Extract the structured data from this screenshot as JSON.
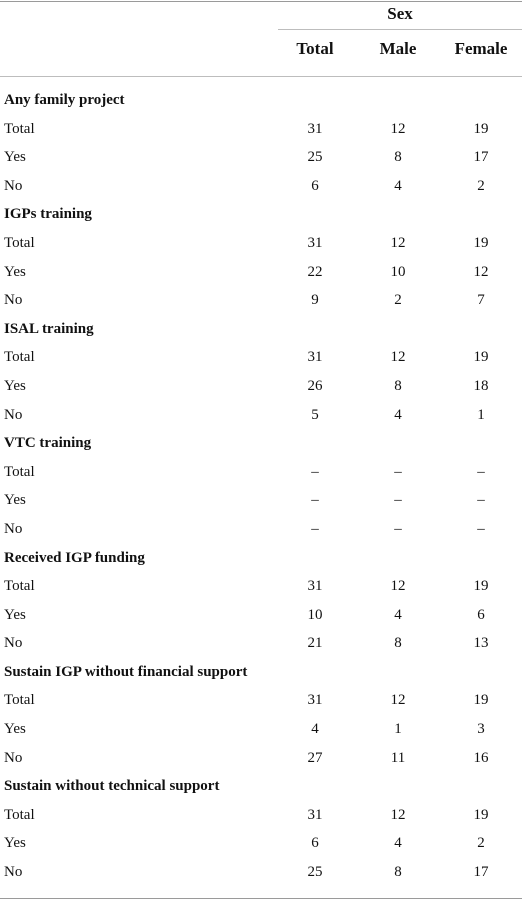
{
  "header": {
    "group_label": "Sex",
    "columns": [
      "Total",
      "Male",
      "Female"
    ]
  },
  "sections": [
    {
      "title": "Any family project",
      "rows": [
        {
          "label": "Total",
          "values": [
            "31",
            "12",
            "19"
          ]
        },
        {
          "label": "Yes",
          "values": [
            "25",
            "8",
            "17"
          ]
        },
        {
          "label": "No",
          "values": [
            "6",
            "4",
            "2"
          ]
        }
      ]
    },
    {
      "title": "IGPs training",
      "rows": [
        {
          "label": "Total",
          "values": [
            "31",
            "12",
            "19"
          ]
        },
        {
          "label": "Yes",
          "values": [
            "22",
            "10",
            "12"
          ]
        },
        {
          "label": "No",
          "values": [
            "9",
            "2",
            "7"
          ]
        }
      ]
    },
    {
      "title": "ISAL training",
      "rows": [
        {
          "label": "Total",
          "values": [
            "31",
            "12",
            "19"
          ]
        },
        {
          "label": "Yes",
          "values": [
            "26",
            "8",
            "18"
          ]
        },
        {
          "label": "No",
          "values": [
            "5",
            "4",
            "1"
          ]
        }
      ]
    },
    {
      "title": "VTC training",
      "rows": [
        {
          "label": "Total",
          "values": [
            "–",
            "–",
            "–"
          ]
        },
        {
          "label": "Yes",
          "values": [
            "–",
            "–",
            "–"
          ]
        },
        {
          "label": "No",
          "values": [
            "–",
            "–",
            "–"
          ]
        }
      ]
    },
    {
      "title": "Received IGP funding",
      "rows": [
        {
          "label": "Total",
          "values": [
            "31",
            "12",
            "19"
          ]
        },
        {
          "label": "Yes",
          "values": [
            "10",
            "4",
            "6"
          ]
        },
        {
          "label": "No",
          "values": [
            "21",
            "8",
            "13"
          ]
        }
      ]
    },
    {
      "title": "Sustain IGP without financial support",
      "rows": [
        {
          "label": "Total",
          "values": [
            "31",
            "12",
            "19"
          ]
        },
        {
          "label": "Yes",
          "values": [
            "4",
            "1",
            "3"
          ]
        },
        {
          "label": "No",
          "values": [
            "27",
            "11",
            "16"
          ]
        }
      ]
    },
    {
      "title": "Sustain without technical support",
      "rows": [
        {
          "label": "Total",
          "values": [
            "31",
            "12",
            "19"
          ]
        },
        {
          "label": "Yes",
          "values": [
            "6",
            "4",
            "2"
          ]
        },
        {
          "label": "No",
          "values": [
            "25",
            "8",
            "17"
          ]
        }
      ]
    }
  ]
}
